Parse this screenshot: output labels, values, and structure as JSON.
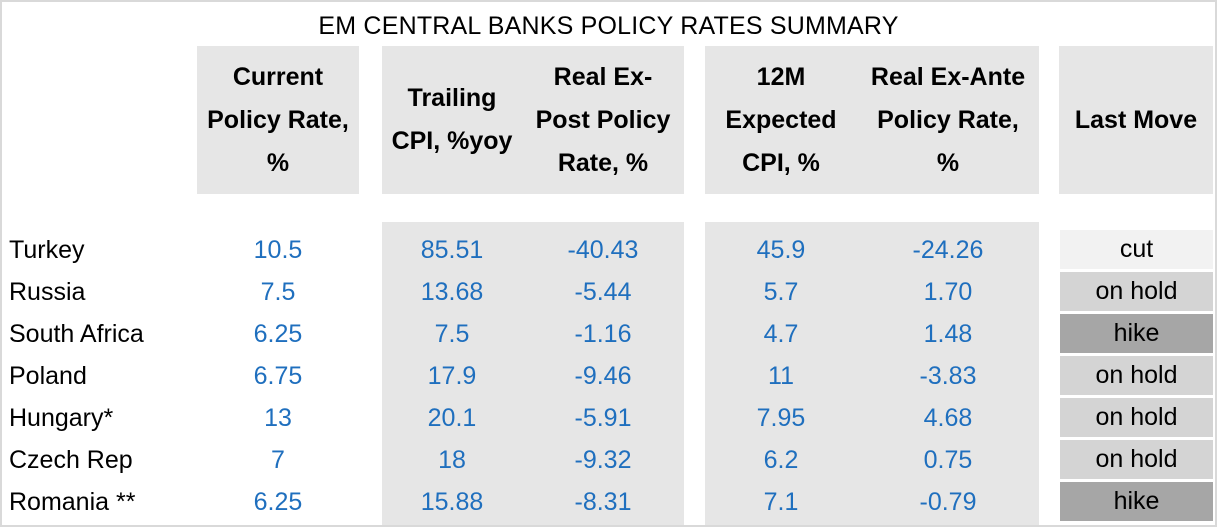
{
  "title": "EM CENTRAL BANKS POLICY RATES SUMMARY",
  "headers": {
    "current_policy_rate": [
      "Current",
      "Policy Rate,",
      "%"
    ],
    "trailing_cpi": [
      "Trailing",
      "CPI, %yoy"
    ],
    "real_ex_post": [
      "Real Ex-",
      "Post Policy",
      "Rate, %"
    ],
    "expected_cpi": [
      "12M",
      "Expected",
      "CPI, %"
    ],
    "real_ex_ante": [
      "Real Ex-Ante",
      "Policy Rate,",
      "%"
    ],
    "last_move": [
      "Last Move"
    ]
  },
  "rows": [
    {
      "country": "Turkey",
      "policy_rate": "10.5",
      "trailing_cpi": "85.51",
      "real_ex_post": "-40.43",
      "expected_cpi": "45.9",
      "real_ex_ante": "-24.26",
      "last_move": "cut",
      "move_type": "cut"
    },
    {
      "country": "Russia",
      "policy_rate": "7.5",
      "trailing_cpi": "13.68",
      "real_ex_post": "-5.44",
      "expected_cpi": "5.7",
      "real_ex_ante": "1.70",
      "last_move": "on hold",
      "move_type": "hold"
    },
    {
      "country": "South Africa",
      "policy_rate": "6.25",
      "trailing_cpi": "7.5",
      "real_ex_post": "-1.16",
      "expected_cpi": "4.7",
      "real_ex_ante": "1.48",
      "last_move": "hike",
      "move_type": "hike"
    },
    {
      "country": "Poland",
      "policy_rate": "6.75",
      "trailing_cpi": "17.9",
      "real_ex_post": "-9.46",
      "expected_cpi": "11",
      "real_ex_ante": "-3.83",
      "last_move": "on hold",
      "move_type": "hold"
    },
    {
      "country": "Hungary*",
      "policy_rate": "13",
      "trailing_cpi": "20.1",
      "real_ex_post": "-5.91",
      "expected_cpi": "7.95",
      "real_ex_ante": "4.68",
      "last_move": "on hold",
      "move_type": "hold"
    },
    {
      "country": "Czech Rep",
      "policy_rate": "7",
      "trailing_cpi": "18",
      "real_ex_post": "-9.32",
      "expected_cpi": "6.2",
      "real_ex_ante": "0.75",
      "last_move": "on hold",
      "move_type": "hold"
    },
    {
      "country": "Romania **",
      "policy_rate": "6.25",
      "trailing_cpi": "15.88",
      "real_ex_post": "-8.31",
      "expected_cpi": "7.1",
      "real_ex_ante": "-0.79",
      "last_move": "hike",
      "move_type": "hike"
    }
  ],
  "colors": {
    "value_text": "#1f6fbe",
    "panel_bg": "#e6e6e6",
    "cut_bg": "#f2f2f2",
    "hold_bg": "#d4d4d4",
    "hike_bg": "#a6a6a6"
  }
}
